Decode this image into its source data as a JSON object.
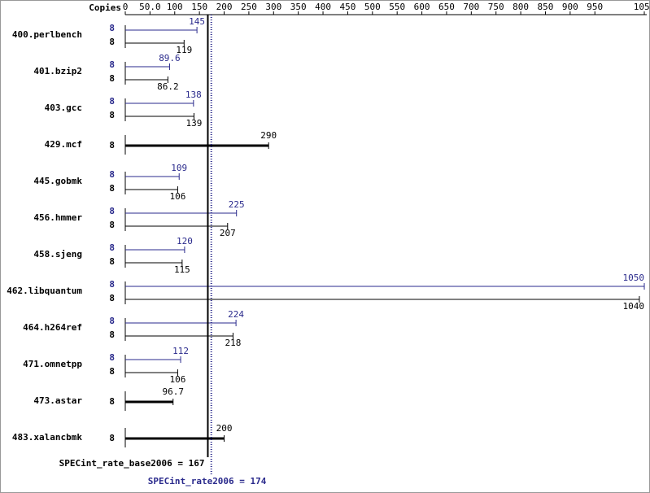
{
  "chart_data": {
    "type": "bar",
    "copies_header": "Copies",
    "categories": [
      "400.perlbench",
      "401.bzip2",
      "403.gcc",
      "429.mcf",
      "445.gobmk",
      "456.hmmer",
      "458.sjeng",
      "462.libquantum",
      "464.h264ref",
      "471.omnetpp",
      "473.astar",
      "483.xalancbmk"
    ],
    "series": [
      {
        "name": "SPECint_rate2006",
        "color": "#2a2a8c",
        "copies": [
          8,
          8,
          8,
          null,
          8,
          8,
          8,
          8,
          8,
          8,
          null,
          null
        ],
        "values": [
          145,
          89.6,
          138,
          null,
          109,
          225,
          120,
          1050,
          224,
          112,
          null,
          null
        ]
      },
      {
        "name": "SPECint_rate_base2006",
        "color": "#000000",
        "copies": [
          8,
          8,
          8,
          8,
          8,
          8,
          8,
          8,
          8,
          8,
          8,
          8
        ],
        "values": [
          119,
          86.2,
          139,
          290,
          106,
          207,
          115,
          1040,
          218,
          106,
          96.7,
          200
        ]
      }
    ],
    "xlim": [
      0,
      1050
    ],
    "xticks": [
      0,
      {
        "value": 50,
        "label": "50.0"
      },
      100,
      150,
      200,
      250,
      300,
      350,
      400,
      450,
      500,
      550,
      600,
      650,
      700,
      750,
      800,
      850,
      900,
      950,
      1050
    ],
    "reference_lines": [
      {
        "label": "SPECint_rate_base2006 = 167",
        "value": 167,
        "color": "#000000"
      },
      {
        "label": "SPECint_rate2006 = 174",
        "value": 174,
        "color": "#2a2a8c"
      }
    ]
  }
}
